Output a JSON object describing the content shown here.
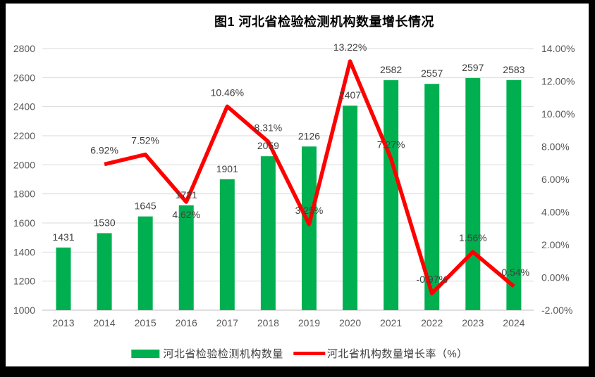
{
  "figure": {
    "title": "图1 河北省检验检测机构数量增长情况"
  },
  "legend": {
    "bars_label": "河北省检验检测机构数量",
    "line_label": "河北省机构数量增长率（%）"
  },
  "colors": {
    "bar": "#00B050",
    "line": "#FF0000",
    "gridline": "#D9D9D9",
    "axis_line": "#BFBFBF",
    "tick_text": "#595959",
    "data_label": "#404040",
    "frame": "#000000",
    "panel": "#FFFFFF"
  },
  "chart_data": {
    "type": "bar",
    "subtype": "bar+line combo, dual axis",
    "title": "图1 河北省检验检测机构数量增长情况",
    "categories": [
      "2013",
      "2014",
      "2015",
      "2016",
      "2017",
      "2018",
      "2019",
      "2020",
      "2021",
      "2022",
      "2023",
      "2024"
    ],
    "series": [
      {
        "name": "河北省检验检测机构数量",
        "type": "bar",
        "axis": "left",
        "color": "#00B050",
        "values": [
          1431,
          1530,
          1645,
          1721,
          1901,
          2059,
          2126,
          2407,
          2582,
          2557,
          2597,
          2583
        ],
        "labels": [
          "1431",
          "1530",
          "1645",
          "1721",
          "1901",
          "2059",
          "2126",
          "2407",
          "2582",
          "2557",
          "2597",
          "2583"
        ]
      },
      {
        "name": "河北省机构数量增长率（%）",
        "type": "line",
        "axis": "right",
        "color": "#FF0000",
        "values": [
          null,
          6.92,
          7.52,
          4.62,
          10.46,
          8.31,
          3.25,
          13.22,
          7.27,
          -0.97,
          1.56,
          -0.54
        ],
        "labels": [
          null,
          "6.92%",
          "7.52%",
          "4.62%",
          "10.46%",
          "8.31%",
          "3.25%",
          "13.22%",
          "7.27%",
          "-0.97%",
          "1.56%",
          "-0.54%"
        ],
        "label_below_indices": [
          3
        ]
      }
    ],
    "left_axis": {
      "min": 1000,
      "max": 2800,
      "step": 200,
      "ticks": [
        "1000",
        "1200",
        "1400",
        "1600",
        "1800",
        "2000",
        "2200",
        "2400",
        "2600",
        "2800"
      ]
    },
    "right_axis": {
      "min": -2,
      "max": 14,
      "step": 2,
      "ticks": [
        "-2.00%",
        "0.00%",
        "2.00%",
        "4.00%",
        "6.00%",
        "8.00%",
        "10.00%",
        "12.00%",
        "14.00%"
      ]
    },
    "grid": "horizontal gridlines on",
    "legend_position": "bottom"
  }
}
